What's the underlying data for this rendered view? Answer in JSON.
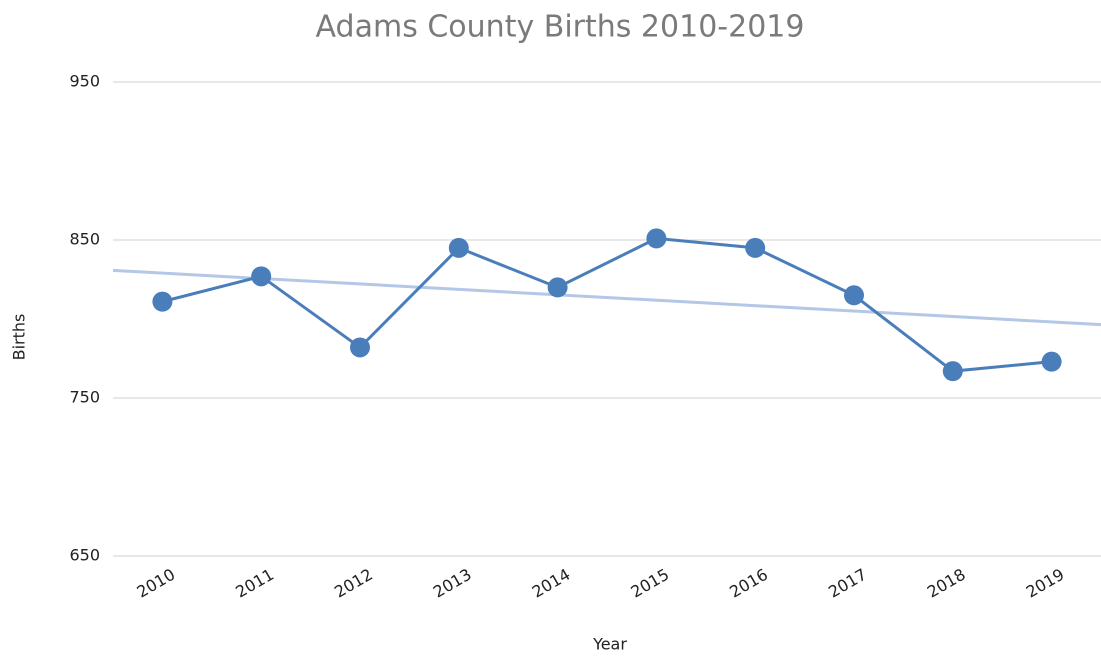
{
  "chart_data": {
    "type": "line",
    "title": "Adams County Births 2010-2019",
    "x_label": "Year",
    "y_label": "Births",
    "categories": [
      "2010",
      "2011",
      "2012",
      "2013",
      "2014",
      "2015",
      "2016",
      "2017",
      "2018",
      "2019"
    ],
    "series": [
      {
        "name": "Births",
        "color": "#4a7ebb",
        "values": [
          811,
          827,
          782,
          845,
          820,
          851,
          845,
          815,
          767,
          773
        ]
      }
    ],
    "ylim": [
      650,
      950
    ],
    "yticks": [
      650,
      750,
      850,
      950
    ],
    "grid": true,
    "trendline": true,
    "trendline_color": "#b4c7e7",
    "legend": false
  }
}
